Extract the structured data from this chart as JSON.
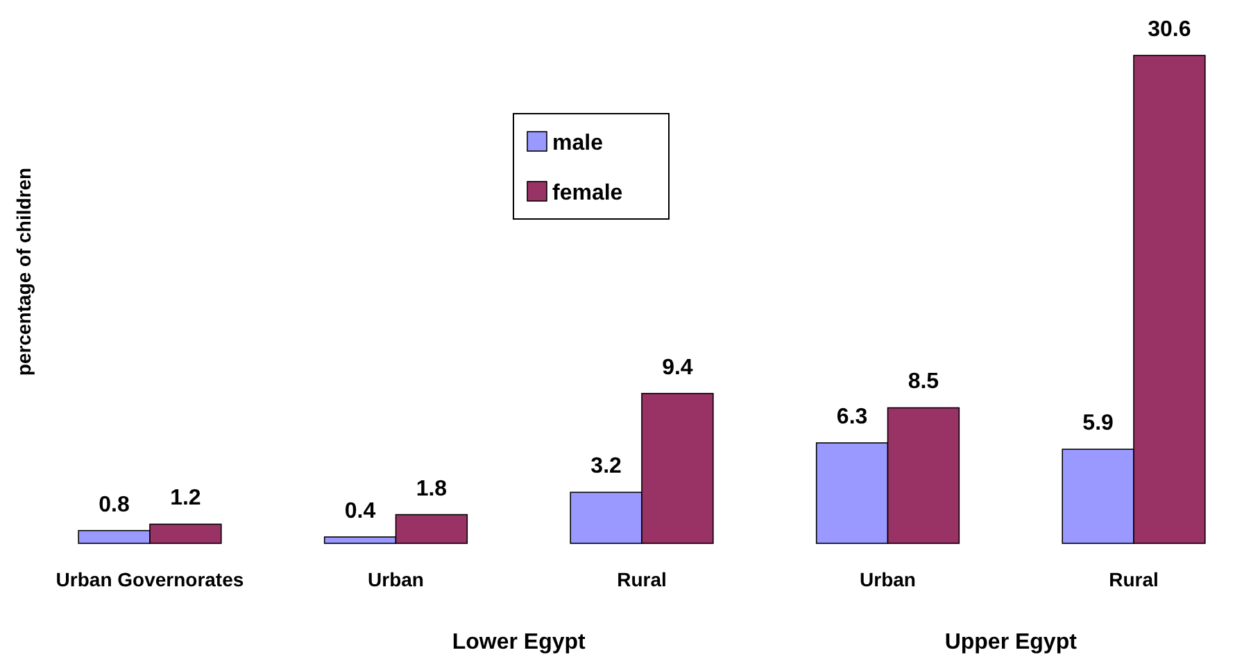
{
  "chart_data": {
    "type": "bar",
    "ylabel": "percentage of children",
    "categories": [
      "Urban Governorates",
      "Urban",
      "Rural",
      "Urban",
      "Rural"
    ],
    "series": [
      {
        "name": "male",
        "color": "#9999ff",
        "values": [
          0.8,
          0.4,
          3.2,
          6.3,
          5.9
        ]
      },
      {
        "name": "female",
        "color": "#993366",
        "values": [
          1.2,
          1.8,
          9.4,
          8.5,
          30.6
        ]
      }
    ],
    "data_labels": true,
    "legend": "top",
    "grid": false,
    "annotations": [
      "Lower Egypt",
      "Upper Egypt"
    ]
  }
}
